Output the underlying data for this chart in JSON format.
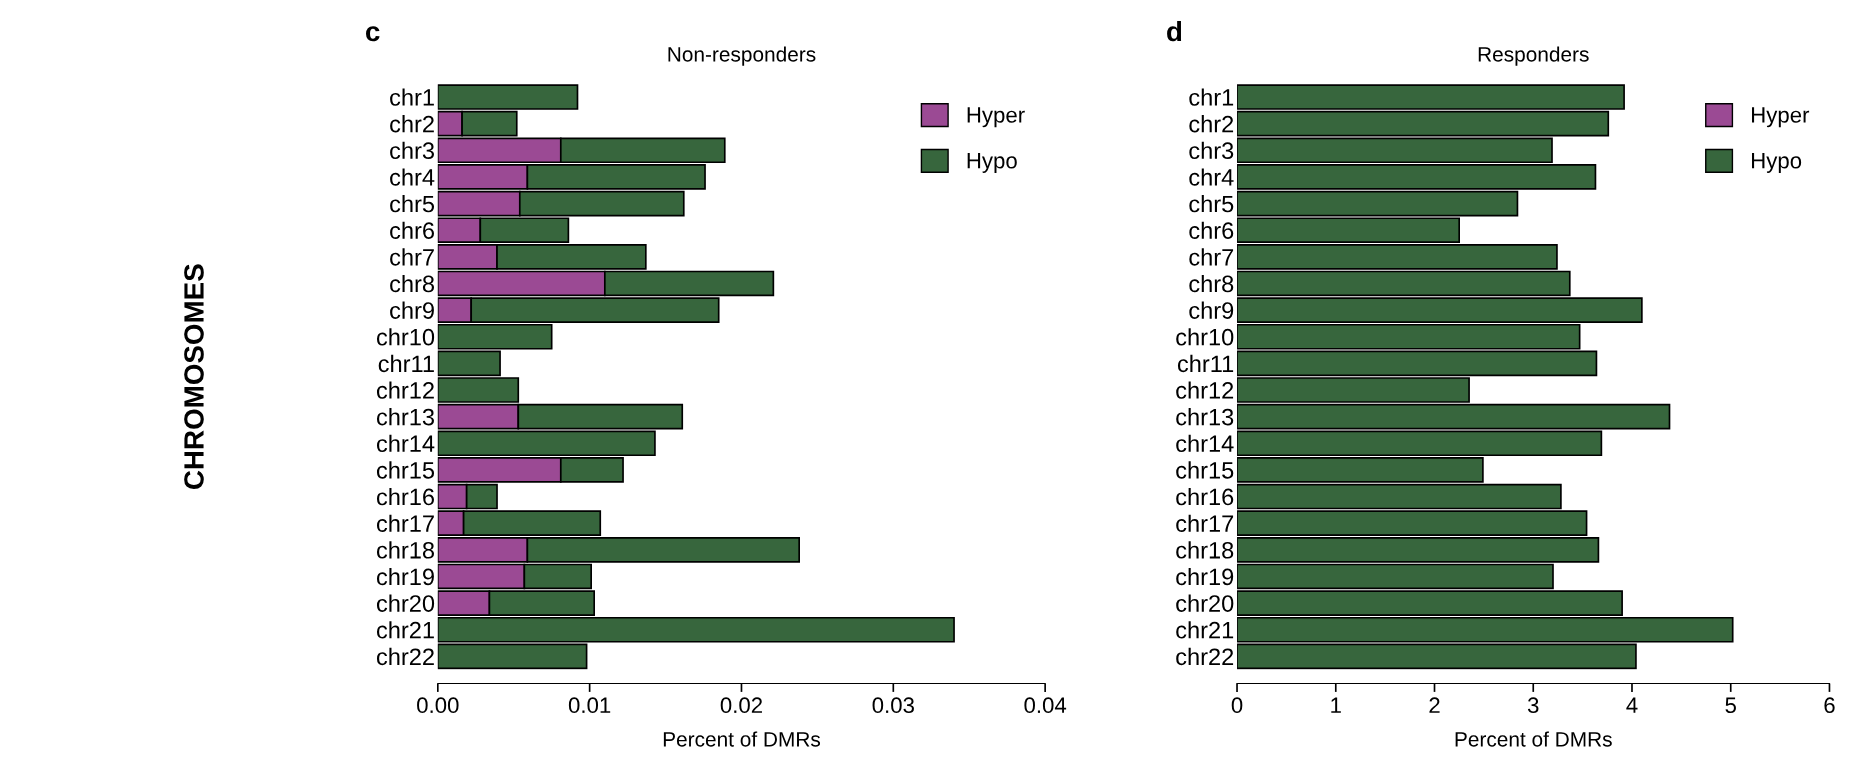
{
  "chart_data": [
    {
      "type": "bar",
      "orientation": "horizontal",
      "stacked": true,
      "title": "Non-responders",
      "xlabel": "Percent of DMRs",
      "ylabel": "CHROMOSOMES",
      "annotations": [
        "c"
      ],
      "categories": [
        "chr1",
        "chr2",
        "chr3",
        "chr4",
        "chr5",
        "chr6",
        "chr7",
        "chr8",
        "chr9",
        "chr10",
        "chr11",
        "chr12",
        "chr13",
        "chr14",
        "chr15",
        "chr16",
        "chr17",
        "chr18",
        "chr19",
        "chr20",
        "chr21",
        "chr22"
      ],
      "series": [
        {
          "name": "Hyper",
          "color": "#9b4a94",
          "values": [
            0,
            0.0016,
            0.0081,
            0.0059,
            0.0054,
            0.0028,
            0.0039,
            0.011,
            0.0022,
            0,
            0,
            0,
            0.0053,
            0,
            0.0081,
            0.0019,
            0.0017,
            0.0059,
            0.0057,
            0.0034,
            0,
            0
          ]
        },
        {
          "name": "Hypo",
          "color": "#37663d",
          "values": [
            0.0092,
            0.0036,
            0.0108,
            0.0117,
            0.0108,
            0.0058,
            0.0098,
            0.0111,
            0.0163,
            0.0075,
            0.0041,
            0.0053,
            0.0108,
            0.0143,
            0.0041,
            0.002,
            0.009,
            0.0179,
            0.0044,
            0.0069,
            0.034,
            0.0098
          ]
        }
      ],
      "xlim": [
        0,
        0.04
      ],
      "xticks": [
        {
          "value": 0,
          "label": "0.00"
        },
        {
          "value": 0.01,
          "label": "0.01"
        },
        {
          "value": 0.02,
          "label": "0.02"
        },
        {
          "value": 0.03,
          "label": "0.03"
        },
        {
          "value": 0.04,
          "label": "0.04"
        }
      ],
      "legend": "top right",
      "grid": false
    },
    {
      "type": "bar",
      "orientation": "horizontal",
      "stacked": true,
      "title": "Responders",
      "xlabel": "Percent of DMRs",
      "annotations": [
        "d"
      ],
      "categories": [
        "chr1",
        "chr2",
        "chr3",
        "chr4",
        "chr5",
        "chr6",
        "chr7",
        "chr8",
        "chr9",
        "chr10",
        "chr11",
        "chr12",
        "chr13",
        "chr14",
        "chr15",
        "chr16",
        "chr17",
        "chr18",
        "chr19",
        "chr20",
        "chr21",
        "chr22"
      ],
      "series": [
        {
          "name": "Hyper",
          "color": "#9b4a94",
          "values": [
            0,
            0,
            0,
            0,
            0,
            0,
            0,
            0,
            0,
            0,
            0,
            0,
            0,
            0,
            0,
            0,
            0,
            0,
            0,
            0,
            0,
            0
          ]
        },
        {
          "name": "Hypo",
          "color": "#37663d",
          "values": [
            3.92,
            3.76,
            3.19,
            3.63,
            2.84,
            2.25,
            3.24,
            3.37,
            4.1,
            3.47,
            3.64,
            2.35,
            4.38,
            3.69,
            2.49,
            3.28,
            3.54,
            3.66,
            3.2,
            3.9,
            5.02,
            4.04
          ]
        }
      ],
      "xlim": [
        0,
        6
      ],
      "xticks": [
        0,
        1,
        2,
        3,
        4,
        5,
        6
      ],
      "legend": "top right",
      "grid": false
    }
  ]
}
